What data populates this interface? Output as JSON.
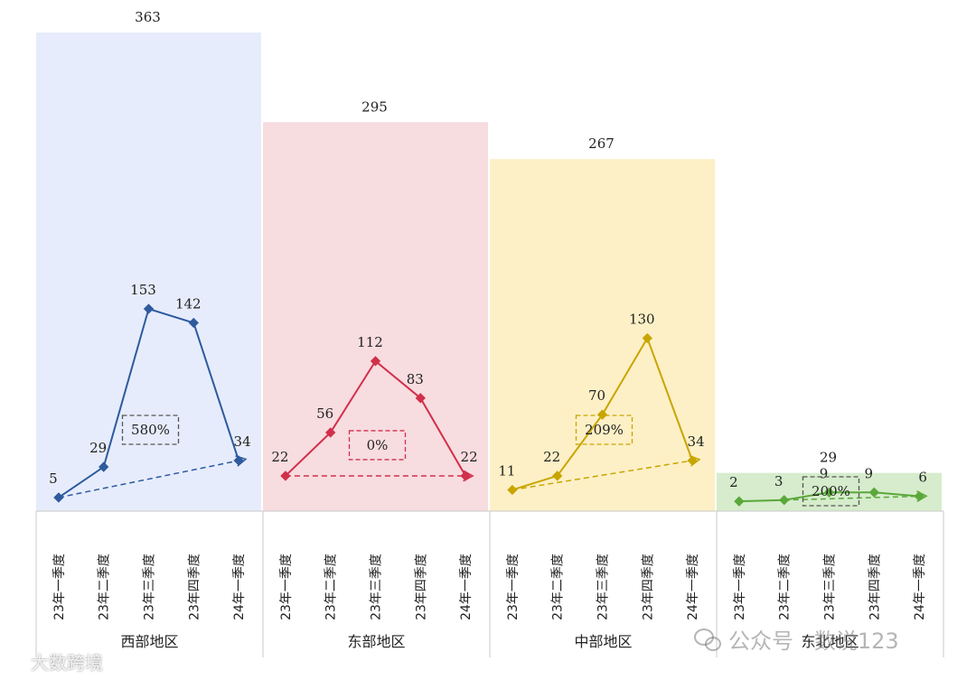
{
  "chart_data": {
    "type": "bar+line",
    "title": "",
    "bar_ylim": [
      0,
      400
    ],
    "line_ylim": [
      0,
      170
    ],
    "regions": [
      {
        "name": "西部地区",
        "total": 363,
        "growth": "580%",
        "bg_color": "#e6ecfb",
        "line_color": "#2e5a9e",
        "box_color": "#555555",
        "quarters": [
          "23年一季度",
          "23年二季度",
          "23年三季度",
          "23年四季度",
          "24年一季度"
        ],
        "values": [
          5,
          29,
          153,
          142,
          34
        ]
      },
      {
        "name": "东部地区",
        "total": 295,
        "growth": "0%",
        "bg_color": "#f7dce0",
        "line_color": "#d0304a",
        "box_color": "#d0304a",
        "quarters": [
          "23年一季度",
          "23年二季度",
          "23年三季度",
          "23年四季度",
          "24年一季度"
        ],
        "values": [
          22,
          56,
          112,
          83,
          22
        ]
      },
      {
        "name": "中部地区",
        "total": 267,
        "growth": "209%",
        "bg_color": "#fdf0c6",
        "line_color": "#c9a500",
        "box_color": "#c9a500",
        "quarters": [
          "23年一季度",
          "23年二季度",
          "23年三季度",
          "23年四季度",
          "24年一季度"
        ],
        "values": [
          11,
          22,
          70,
          130,
          34
        ]
      },
      {
        "name": "东北地区",
        "total": 29,
        "growth": "200%",
        "bg_color": "#d6eccc",
        "line_color": "#5aa83a",
        "box_color": "#555555",
        "quarters": [
          "23年一季度",
          "23年二季度",
          "23年三季度",
          "23年四季度",
          "24年一季度"
        ],
        "values": [
          2,
          3,
          9,
          9,
          6
        ]
      }
    ]
  },
  "watermarks": {
    "right": "公众号 · 数说123",
    "left": "大数跨境"
  }
}
